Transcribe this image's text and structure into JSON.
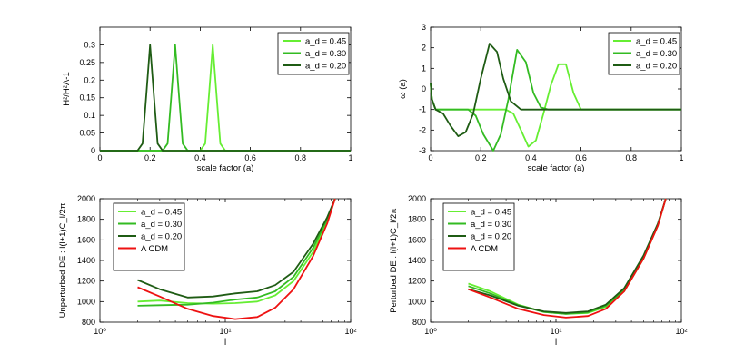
{
  "chart_data": [
    {
      "id": "top-left",
      "type": "line",
      "xlabel": "scale factor (a)",
      "ylabel": "H²/H²Λ-1",
      "xlim": [
        0,
        1
      ],
      "ylim": [
        0,
        0.35
      ],
      "xticks": [
        0,
        0.2,
        0.4,
        0.6,
        0.8,
        1
      ],
      "xtick_labels": [
        "0",
        "0.2",
        "0.4",
        "0.6",
        "0.8",
        "1"
      ],
      "yticks": [
        0,
        0.05,
        0.1,
        0.15,
        0.2,
        0.25,
        0.3
      ],
      "ytick_labels": [
        "0",
        "0.05",
        "0.1",
        "0.15",
        "0.2",
        "0.25",
        "0.3"
      ],
      "legend_position": "top-right",
      "series": [
        {
          "name": "a_d = 0.45",
          "color": "#66ee33",
          "x": [
            0,
            0.4,
            0.42,
            0.435,
            0.45,
            0.465,
            0.48,
            0.5,
            1
          ],
          "y": [
            0,
            0,
            0.02,
            0.16,
            0.3,
            0.16,
            0.02,
            0,
            0
          ]
        },
        {
          "name": "a_d = 0.30",
          "color": "#33bb22",
          "x": [
            0,
            0.25,
            0.27,
            0.285,
            0.3,
            0.315,
            0.33,
            0.35,
            1
          ],
          "y": [
            0,
            0,
            0.02,
            0.16,
            0.3,
            0.16,
            0.02,
            0,
            0
          ]
        },
        {
          "name": "a_d = 0.20",
          "color": "#1f5c14",
          "x": [
            0,
            0.15,
            0.17,
            0.185,
            0.2,
            0.215,
            0.23,
            0.25,
            1
          ],
          "y": [
            0,
            0,
            0.02,
            0.16,
            0.3,
            0.16,
            0.02,
            0,
            0
          ]
        }
      ]
    },
    {
      "id": "top-right",
      "type": "line",
      "xlabel": "scale factor (a)",
      "ylabel": "ω (a)",
      "xlim": [
        0,
        1
      ],
      "ylim": [
        -3,
        3
      ],
      "xticks": [
        0,
        0.2,
        0.4,
        0.6,
        0.8,
        1
      ],
      "xtick_labels": [
        "0",
        "0.2",
        "0.4",
        "0.6",
        "0.8",
        "1"
      ],
      "yticks": [
        -3,
        -2,
        -1,
        0,
        1,
        2,
        3
      ],
      "ytick_labels": [
        "-3",
        "-2",
        "-1",
        "0",
        "1",
        "2",
        "3"
      ],
      "legend_position": "top-right",
      "series": [
        {
          "name": "a_d = 0.45",
          "color": "#66ee33",
          "x": [
            0,
            0.005,
            0.02,
            0.3,
            0.33,
            0.36,
            0.39,
            0.42,
            0.45,
            0.48,
            0.51,
            0.54,
            0.57,
            0.6,
            1
          ],
          "y": [
            0.3,
            -0.5,
            -1,
            -1,
            -1.2,
            -2.0,
            -2.8,
            -2.5,
            -1.2,
            0.2,
            1.2,
            1.2,
            -0.2,
            -1,
            -1
          ]
        },
        {
          "name": "a_d = 0.30",
          "color": "#33bb22",
          "x": [
            0,
            0.005,
            0.02,
            0.15,
            0.18,
            0.21,
            0.25,
            0.28,
            0.31,
            0.345,
            0.38,
            0.41,
            0.44,
            0.47,
            1
          ],
          "y": [
            0.3,
            -0.5,
            -1,
            -1,
            -1.3,
            -2.2,
            -3.0,
            -2.2,
            -0.5,
            1.9,
            1.3,
            -0.2,
            -0.9,
            -1,
            -1
          ]
        },
        {
          "name": "a_d = 0.20",
          "color": "#1f5c14",
          "x": [
            0,
            0.005,
            0.02,
            0.05,
            0.08,
            0.11,
            0.14,
            0.17,
            0.2,
            0.235,
            0.265,
            0.29,
            0.32,
            0.36,
            1
          ],
          "y": [
            0.3,
            -0.5,
            -1,
            -1.2,
            -1.8,
            -2.3,
            -2.1,
            -1.2,
            0.5,
            2.2,
            1.8,
            0.5,
            -0.6,
            -1,
            -1
          ]
        }
      ]
    },
    {
      "id": "bottom-left",
      "type": "line",
      "xscale": "log",
      "xlabel": "l",
      "ylabel": "Unperturbed DE : l(l+1)C_l/2π",
      "xlim": [
        1,
        100
      ],
      "ylim": [
        800,
        2000
      ],
      "xtick_labels": [
        "10⁰",
        "10¹",
        "10²"
      ],
      "yticks": [
        800,
        1000,
        1200,
        1400,
        1600,
        1800,
        2000
      ],
      "ytick_labels": [
        "800",
        "1000",
        "1200",
        "1400",
        "1600",
        "1800",
        "2000"
      ],
      "legend_position": "top-left",
      "series": [
        {
          "name": "a_d = 0.45",
          "color": "#66ee33",
          "x": [
            2,
            3,
            5,
            8,
            12,
            18,
            25,
            35,
            50,
            65,
            75
          ],
          "y": [
            1000,
            1010,
            985,
            980,
            985,
            1000,
            1060,
            1200,
            1480,
            1780,
            2000
          ]
        },
        {
          "name": "a_d = 0.30",
          "color": "#33bb22",
          "x": [
            2,
            3,
            5,
            8,
            12,
            18,
            25,
            35,
            50,
            65,
            75
          ],
          "y": [
            960,
            965,
            970,
            990,
            1020,
            1040,
            1100,
            1240,
            1520,
            1800,
            2000
          ]
        },
        {
          "name": "a_d = 0.20",
          "color": "#1f5c14",
          "x": [
            2,
            3,
            5,
            8,
            12,
            18,
            25,
            35,
            50,
            65,
            75
          ],
          "y": [
            1210,
            1120,
            1040,
            1050,
            1080,
            1100,
            1160,
            1290,
            1560,
            1820,
            2000
          ]
        },
        {
          "name": "Λ CDM",
          "color": "#ee1111",
          "x": [
            2,
            3,
            5,
            8,
            12,
            18,
            25,
            35,
            50,
            65,
            75
          ],
          "y": [
            1140,
            1050,
            930,
            860,
            830,
            850,
            940,
            1120,
            1440,
            1760,
            2000
          ]
        }
      ]
    },
    {
      "id": "bottom-right",
      "type": "line",
      "xscale": "log",
      "xlabel": "l",
      "ylabel": "Perturbed DE : l(l+1)C_l/2π",
      "xlim": [
        1,
        100
      ],
      "ylim": [
        800,
        2000
      ],
      "xtick_labels": [
        "10⁰",
        "10¹",
        "10²"
      ],
      "yticks": [
        800,
        1000,
        1200,
        1400,
        1600,
        1800,
        2000
      ],
      "ytick_labels": [
        "800",
        "1000",
        "1200",
        "1400",
        "1600",
        "1800",
        "2000"
      ],
      "legend_position": "top-left",
      "series": [
        {
          "name": "a_d = 0.45",
          "color": "#66ee33",
          "x": [
            2,
            3,
            5,
            8,
            12,
            18,
            25,
            35,
            50,
            65,
            75
          ],
          "y": [
            1175,
            1100,
            970,
            900,
            880,
            890,
            950,
            1100,
            1420,
            1740,
            2000
          ]
        },
        {
          "name": "a_d = 0.30",
          "color": "#33bb22",
          "x": [
            2,
            3,
            5,
            8,
            12,
            18,
            25,
            35,
            50,
            65,
            75
          ],
          "y": [
            1150,
            1080,
            965,
            900,
            880,
            895,
            960,
            1115,
            1430,
            1750,
            2000
          ]
        },
        {
          "name": "a_d = 0.20",
          "color": "#1f5c14",
          "x": [
            2,
            3,
            5,
            8,
            12,
            18,
            25,
            35,
            50,
            65,
            75
          ],
          "y": [
            1120,
            1060,
            960,
            905,
            890,
            905,
            970,
            1130,
            1450,
            1760,
            2000
          ]
        },
        {
          "name": "Λ CDM",
          "color": "#ee1111",
          "x": [
            2,
            3,
            5,
            8,
            12,
            18,
            25,
            35,
            50,
            65,
            75
          ],
          "y": [
            1120,
            1040,
            930,
            870,
            845,
            860,
            930,
            1100,
            1420,
            1740,
            2000
          ]
        }
      ]
    }
  ]
}
